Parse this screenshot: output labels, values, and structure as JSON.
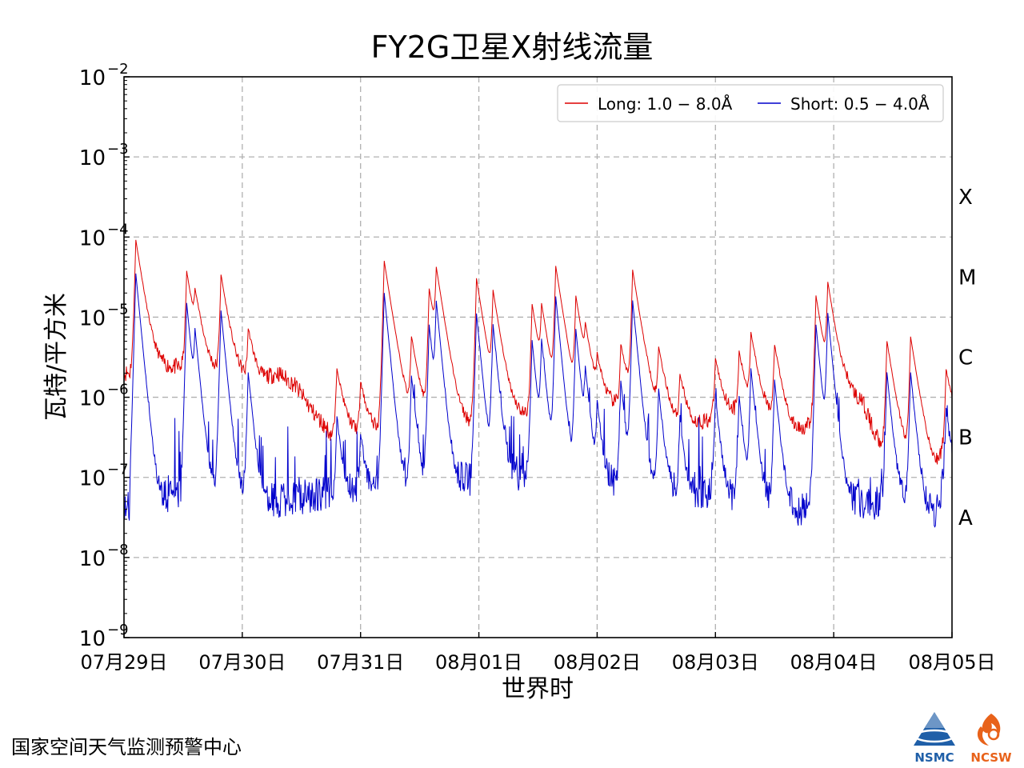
{
  "chart_data": {
    "type": "line",
    "title": "FY2G卫星X射线流量",
    "xlabel": "世界时",
    "ylabel": "瓦特/平方米",
    "yscale": "log",
    "ylim": [
      1e-09,
      0.01
    ],
    "yticks": [
      {
        "value": 1e-09,
        "base": "10",
        "exp": "−9"
      },
      {
        "value": 1e-08,
        "base": "10",
        "exp": "−8"
      },
      {
        "value": 1e-07,
        "base": "10",
        "exp": "−7"
      },
      {
        "value": 1e-06,
        "base": "10",
        "exp": "−6"
      },
      {
        "value": 1e-05,
        "base": "10",
        "exp": "−5"
      },
      {
        "value": 0.0001,
        "base": "10",
        "exp": "−4"
      },
      {
        "value": 0.001,
        "base": "10",
        "exp": "−3"
      },
      {
        "value": 0.01,
        "base": "10",
        "exp": "−2"
      }
    ],
    "xlim": [
      0,
      7
    ],
    "xunit": "days since 07月29日 00:00 UT",
    "xticks": [
      "07月29日",
      "07月30日",
      "07月31日",
      "08月01日",
      "08月02日",
      "08月03日",
      "08月04日",
      "08月05日"
    ],
    "flare_classes": [
      {
        "label": "X",
        "value": 0.000316
      },
      {
        "label": "M",
        "value": 3.16e-05
      },
      {
        "label": "C",
        "value": 3.16e-06
      },
      {
        "label": "B",
        "value": 3.16e-07
      },
      {
        "label": "A",
        "value": 3.16e-08
      }
    ],
    "grid": true,
    "legend_position": "top-right",
    "series": [
      {
        "name": "Long: 1.0 − 8.0Å",
        "color": "#dd0000",
        "baseline": [
          [
            0,
            2e-06
          ],
          [
            0.5,
            2.4e-06
          ],
          [
            0.9,
            1.8e-06
          ],
          [
            1.15,
            1.5e-06
          ],
          [
            1.3,
            2e-06
          ],
          [
            1.45,
            1.4e-06
          ],
          [
            1.6,
            6.5e-07
          ],
          [
            1.75,
            3.5e-07
          ],
          [
            1.9,
            3.5e-07
          ],
          [
            2.0,
            3.5e-07
          ],
          [
            2.3,
            4.5e-07
          ],
          [
            2.6,
            5.5e-07
          ],
          [
            2.8,
            4e-07
          ],
          [
            3.0,
            4.5e-07
          ],
          [
            3.3,
            6e-07
          ],
          [
            3.55,
            5.5e-07
          ],
          [
            3.75,
            3.8e-07
          ],
          [
            4.0,
            7e-07
          ],
          [
            4.2,
            8e-07
          ],
          [
            4.4,
            7e-07
          ],
          [
            4.6,
            5e-07
          ],
          [
            4.8,
            4e-07
          ],
          [
            5.0,
            6e-07
          ],
          [
            5.3,
            7e-07
          ],
          [
            5.5,
            5e-07
          ],
          [
            5.65,
            3.5e-07
          ],
          [
            5.8,
            4.5e-07
          ],
          [
            6.0,
            8e-07
          ],
          [
            6.1,
            1.2e-06
          ],
          [
            6.25,
            8e-07
          ],
          [
            6.35,
            3.5e-07
          ],
          [
            6.5,
            1.8e-07
          ],
          [
            6.7,
            1.3e-07
          ],
          [
            6.85,
            1.1e-07
          ],
          [
            7.0,
            4e-07
          ]
        ],
        "noise": 0.11,
        "floor": null
      },
      {
        "name": "Short: 0.5 − 4.0Å",
        "color": "#0000cc",
        "baseline": [
          [
            0,
            4.5e-08
          ],
          [
            0.4,
            5.5e-08
          ],
          [
            0.9,
            6e-08
          ],
          [
            1.3,
            5e-08
          ],
          [
            1.6,
            6e-08
          ],
          [
            1.9,
            7e-08
          ],
          [
            2.2,
            6.5e-08
          ],
          [
            2.6,
            7.5e-08
          ],
          [
            3.0,
            1e-07
          ],
          [
            3.3,
            1.1e-07
          ],
          [
            3.6,
            9e-08
          ],
          [
            3.9,
            7e-08
          ],
          [
            4.2,
            8.5e-08
          ],
          [
            4.5,
            6.5e-08
          ],
          [
            4.8,
            6e-08
          ],
          [
            5.1,
            5.5e-08
          ],
          [
            5.4,
            4.5e-08
          ],
          [
            5.7,
            3.8e-08
          ],
          [
            6.0,
            5e-08
          ],
          [
            6.3,
            5e-08
          ],
          [
            6.6,
            4.5e-08
          ],
          [
            6.85,
            3.5e-08
          ],
          [
            7.0,
            1.5e-07
          ]
        ],
        "noise": 0.22,
        "floor": 2e-08
      }
    ],
    "flares": [
      {
        "t": 0.1,
        "long": 9e-05,
        "short": 3.5e-05
      },
      {
        "t": 0.53,
        "long": 3.5e-05,
        "short": 1.5e-05
      },
      {
        "t": 0.6,
        "long": 1.4e-05,
        "short": 6e-06
      },
      {
        "t": 0.82,
        "long": 3.2e-05,
        "short": 1.2e-05
      },
      {
        "t": 1.05,
        "long": 5.5e-06,
        "short": 2e-06
      },
      {
        "t": 1.8,
        "long": 2e-06,
        "short": 5e-07
      },
      {
        "t": 2.0,
        "long": 1.2e-06,
        "short": 3e-07
      },
      {
        "t": 2.2,
        "long": 5e-05,
        "short": 2e-05
      },
      {
        "t": 2.43,
        "long": 5e-06,
        "short": 1.8e-06
      },
      {
        "t": 2.58,
        "long": 2.2e-05,
        "short": 8e-06
      },
      {
        "t": 2.64,
        "long": 3.6e-05,
        "short": 1.5e-05
      },
      {
        "t": 2.98,
        "long": 3e-05,
        "short": 1.1e-05
      },
      {
        "t": 3.12,
        "long": 2e-05,
        "short": 8e-06
      },
      {
        "t": 3.45,
        "long": 1.4e-05,
        "short": 5e-06
      },
      {
        "t": 3.53,
        "long": 1.2e-05,
        "short": 5e-06
      },
      {
        "t": 3.65,
        "long": 4.2e-05,
        "short": 1.8e-05
      },
      {
        "t": 3.82,
        "long": 1.7e-05,
        "short": 7e-06
      },
      {
        "t": 3.9,
        "long": 5e-06,
        "short": 2e-06
      },
      {
        "t": 4.0,
        "long": 2e-06,
        "short": 8e-07
      },
      {
        "t": 4.2,
        "long": 3.8e-06,
        "short": 1.5e-06
      },
      {
        "t": 4.3,
        "long": 3.8e-05,
        "short": 1.6e-05
      },
      {
        "t": 4.52,
        "long": 3.5e-06,
        "short": 1.2e-06
      },
      {
        "t": 4.7,
        "long": 1.5e-06,
        "short": 5e-07
      },
      {
        "t": 5.0,
        "long": 2.5e-06,
        "short": 1e-06
      },
      {
        "t": 5.2,
        "long": 3e-06,
        "short": 1e-06
      },
      {
        "t": 5.3,
        "long": 5.5e-06,
        "short": 2.2e-06
      },
      {
        "t": 5.5,
        "long": 4e-06,
        "short": 1.6e-06
      },
      {
        "t": 5.85,
        "long": 1.8e-05,
        "short": 8e-06
      },
      {
        "t": 5.95,
        "long": 2.5e-05,
        "short": 1.1e-05
      },
      {
        "t": 6.45,
        "long": 4.8e-06,
        "short": 2e-06
      },
      {
        "t": 6.65,
        "long": 5.5e-06,
        "short": 2e-06
      },
      {
        "t": 6.95,
        "long": 2e-06,
        "short": 6e-07
      }
    ],
    "seed": 11
  },
  "footer": {
    "agency_text": "国家空间天气监测预警中心",
    "logo_nsmc": "NSMC",
    "logo_ncsw": "NCSW"
  },
  "colors": {
    "long": "#dd0000",
    "short": "#0000cc",
    "grid": "#b0b0b0",
    "nsmc_blue": "#1f5fa8",
    "ncsw_orange": "#e8621a"
  }
}
